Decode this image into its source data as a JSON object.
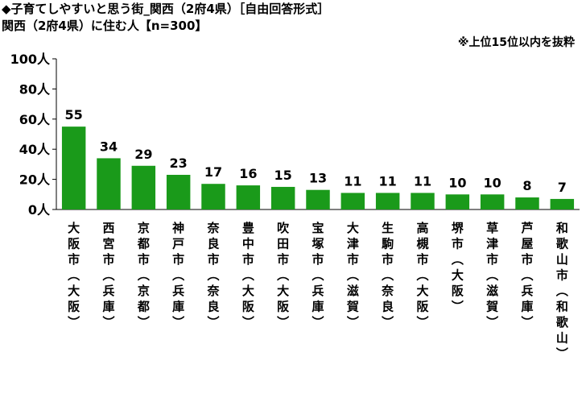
{
  "header": {
    "title_line1": "◆子育てしやすいと思う街_関西（2府4県）［自由回答形式］",
    "title_line2": "関西（2府4県）に住む人【n=300】",
    "note": "※上位15位以内を抜粋"
  },
  "chart_data": {
    "type": "bar",
    "title": "子育てしやすいと思う街_関西（2府4県）［自由回答形式］",
    "subtitle": "関西（2府4県）に住む人【n=300】",
    "categories": [
      "大阪市（大阪）",
      "西宮市（兵庫）",
      "京都市（京都）",
      "神戸市（兵庫）",
      "奈良市（奈良）",
      "豊中市（大阪）",
      "吹田市（大阪）",
      "宝塚市（兵庫）",
      "大津市（滋賀）",
      "生駒市（奈良）",
      "高槻市（大阪）",
      "堺市（大阪）",
      "草津市（滋賀）",
      "芦屋市（兵庫）",
      "和歌山市（和歌山）"
    ],
    "values": [
      55,
      34,
      29,
      23,
      17,
      16,
      15,
      13,
      11,
      11,
      11,
      10,
      10,
      8,
      7
    ],
    "ylim": [
      0,
      100
    ],
    "yticks": [
      "0人",
      "20人",
      "40人",
      "60人",
      "80人",
      "100人"
    ],
    "ytick_values": [
      0,
      20,
      40,
      60,
      80,
      100
    ],
    "bar_color": "#1a9a1a",
    "grid": false,
    "legend": "none"
  }
}
